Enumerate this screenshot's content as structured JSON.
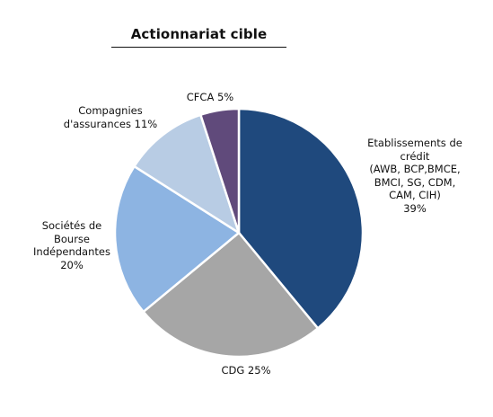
{
  "chart_data": {
    "type": "pie",
    "title": "Actionnariat cible",
    "slices": [
      {
        "label": "Etablissements de crédit (AWB, BCP,BMCE, BMCI, SG, CDM, CAM, CIH) 39%",
        "label_lines": [
          "Etablissements de",
          "crédit",
          "(AWB, BCP,BMCE,",
          "BMCI, SG, CDM,",
          "CAM, CIH)",
          "39%"
        ],
        "value": 39,
        "color": "#1f497d"
      },
      {
        "label": "CDG 25%",
        "label_lines": [
          "CDG 25%"
        ],
        "value": 25,
        "color": "#a6a6a6"
      },
      {
        "label": "Sociétés de Bourse Indépendantes 20%",
        "label_lines": [
          "Sociétés de",
          "Bourse",
          "Indépendantes",
          "20%"
        ],
        "value": 20,
        "color": "#8db4e2"
      },
      {
        "label": "Compagnies d'assurances 11%",
        "label_lines": [
          "Compagnies",
          "d'assurances 11%"
        ],
        "value": 11,
        "color": "#b8cce4"
      },
      {
        "label": "CFCA 5%",
        "label_lines": [
          "CFCA 5%"
        ],
        "value": 5,
        "color": "#604a7b"
      }
    ]
  }
}
